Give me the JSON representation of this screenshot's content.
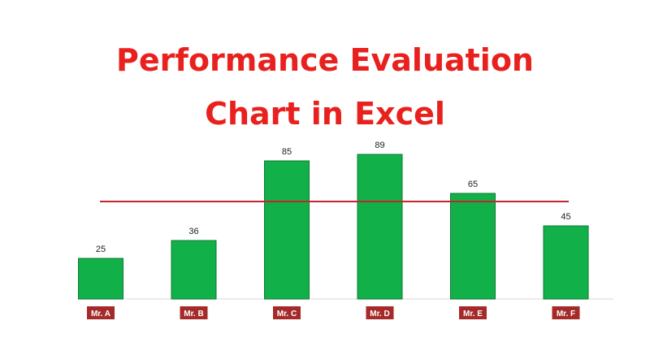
{
  "title_lines": [
    "Performance Evaluation",
    "Chart in Excel"
  ],
  "colors": {
    "title": "#e8211e",
    "bar_fill": "#12b049",
    "bar_stroke": "#0b7a31",
    "target_line": "#c1272d",
    "category_box": "#a52a2a",
    "axis": "#d9d9d9"
  },
  "chart_data": {
    "type": "bar",
    "categories": [
      "Mr. A",
      "Mr. B",
      "Mr. C",
      "Mr. D",
      "Mr. E",
      "Mr. F"
    ],
    "values": [
      25,
      36,
      85,
      89,
      65,
      45
    ],
    "target": 60,
    "ylim": [
      0,
      100
    ],
    "data_labels": true,
    "grid": false,
    "xlabel": "",
    "ylabel": ""
  }
}
